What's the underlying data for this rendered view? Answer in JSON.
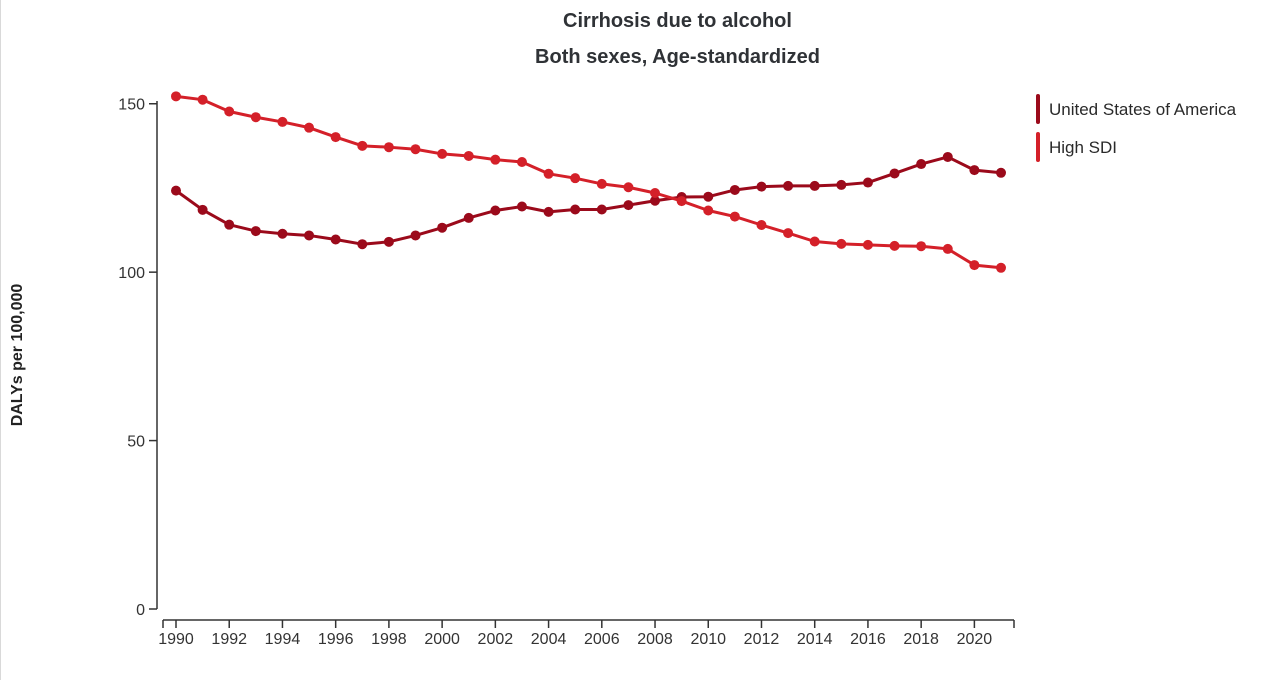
{
  "chart_data": {
    "type": "line",
    "title": "Cirrhosis due to alcohol",
    "subtitle": "Both sexes, Age-standardized",
    "xlabel": "",
    "ylabel": "DALYs per 100,000",
    "x": [
      1990,
      1991,
      1992,
      1993,
      1994,
      1995,
      1996,
      1997,
      1998,
      1999,
      2000,
      2001,
      2002,
      2003,
      2004,
      2005,
      2006,
      2007,
      2008,
      2009,
      2010,
      2011,
      2012,
      2013,
      2014,
      2015,
      2016,
      2017,
      2018,
      2019,
      2020,
      2021
    ],
    "xlim": [
      1990,
      2021
    ],
    "x_ticks": [
      1990,
      1992,
      1994,
      1996,
      1998,
      2000,
      2002,
      2004,
      2006,
      2008,
      2010,
      2012,
      2014,
      2016,
      2018,
      2020
    ],
    "ylim": [
      0,
      152
    ],
    "y_ticks": [
      0,
      50,
      100,
      150
    ],
    "grid": false,
    "legend_position": "right",
    "series": [
      {
        "name": "United States of America",
        "color": "#9b0a1b",
        "values": [
          124.2,
          118.5,
          114.1,
          112.2,
          111.4,
          110.9,
          109.7,
          108.3,
          109.0,
          110.9,
          113.2,
          116.1,
          118.3,
          119.5,
          117.9,
          118.6,
          118.6,
          119.9,
          121.2,
          122.3,
          122.4,
          124.4,
          125.4,
          125.6,
          125.6,
          125.9,
          126.6,
          129.3,
          132.1,
          134.2,
          130.3,
          129.5
        ]
      },
      {
        "name": "High SDI",
        "color": "#d42029",
        "values": [
          152.2,
          151.2,
          147.7,
          146.0,
          144.6,
          142.9,
          140.1,
          137.5,
          137.1,
          136.5,
          135.1,
          134.5,
          133.4,
          132.7,
          129.2,
          127.9,
          126.2,
          125.2,
          123.5,
          121.1,
          118.3,
          116.5,
          114.0,
          111.6,
          109.1,
          108.4,
          108.1,
          107.8,
          107.7,
          106.9,
          102.1,
          101.3
        ]
      }
    ]
  }
}
